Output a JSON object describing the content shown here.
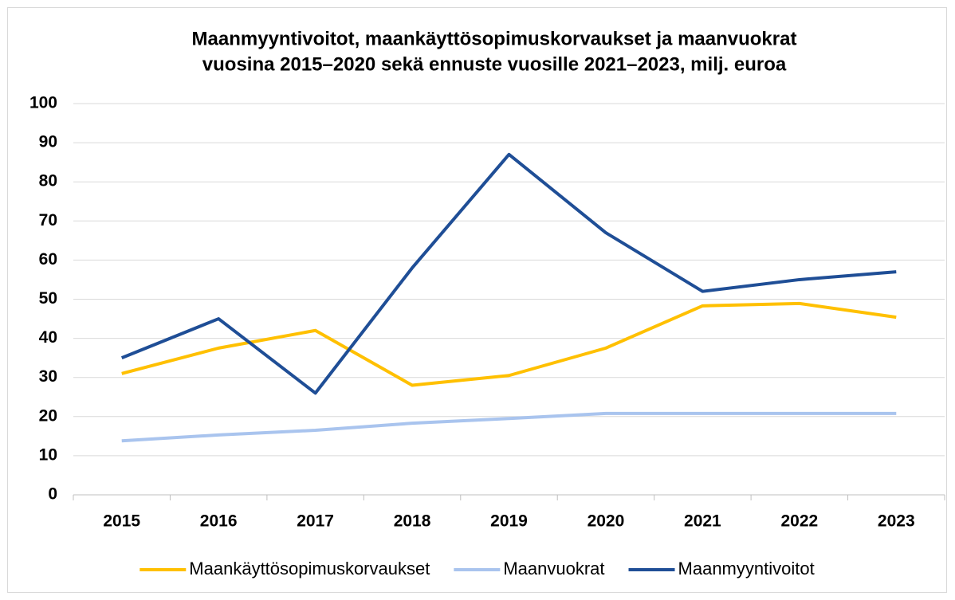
{
  "chart_data": {
    "type": "line",
    "title": [
      "Maanmyyntivoitot, maankäyttösopimuskorvaukset ja maanvuokrat",
      "vuosina 2015–2020 sekä ennuste vuosille 2021–2023, milj. euroa"
    ],
    "categories": [
      "2015",
      "2016",
      "2017",
      "2018",
      "2019",
      "2020",
      "2021",
      "2022",
      "2023"
    ],
    "series": [
      {
        "name": "Maankäyttösopimuskorvaukset",
        "color": "#ffc000",
        "values": [
          31,
          37.5,
          42,
          28,
          30.5,
          37.5,
          48.3,
          48.9,
          45.4
        ]
      },
      {
        "name": "Maanvuokrat",
        "color": "#a9c4ee",
        "values": [
          13.8,
          15.3,
          16.5,
          18.3,
          19.5,
          20.8,
          20.8,
          20.8,
          20.8
        ]
      },
      {
        "name": "Maanmyyntivoitot",
        "color": "#1f4e96",
        "values": [
          35,
          45,
          26,
          58,
          87,
          67,
          52,
          55,
          57
        ]
      }
    ],
    "ylim": [
      0,
      100
    ],
    "yticks": [
      0,
      10,
      20,
      30,
      40,
      50,
      60,
      70,
      80,
      90,
      100
    ],
    "grid": true,
    "legend": "bottom"
  }
}
